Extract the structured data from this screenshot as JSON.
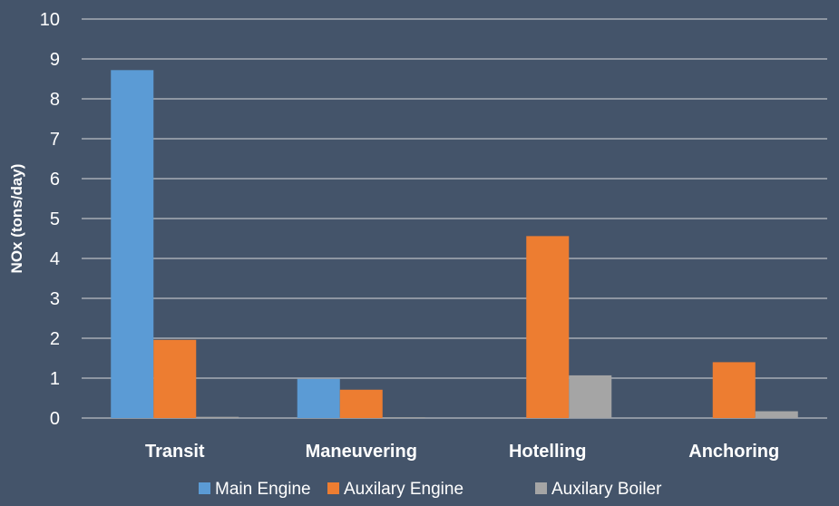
{
  "chart_data": {
    "type": "bar",
    "title": "",
    "xlabel": "",
    "ylabel": "NOx (tons/day)",
    "ylim": [
      0,
      10
    ],
    "yticks": [
      0,
      1,
      2,
      3,
      4,
      5,
      6,
      7,
      8,
      9,
      10
    ],
    "grid": true,
    "legend_position": "bottom",
    "categories": [
      "Transit",
      "Maneuvering",
      "Hotelling",
      "Anchoring"
    ],
    "series": [
      {
        "name": "Main Engine",
        "color": "#5b9bd5",
        "values": [
          8.72,
          0.98,
          0,
          0
        ]
      },
      {
        "name": "Auxilary Engine",
        "color": "#ed7d31",
        "values": [
          1.96,
          0.71,
          4.56,
          1.4
        ]
      },
      {
        "name": "Auxilary Boiler",
        "color": "#a5a5a5",
        "values": [
          0.03,
          0.02,
          1.07,
          0.17
        ]
      }
    ]
  }
}
